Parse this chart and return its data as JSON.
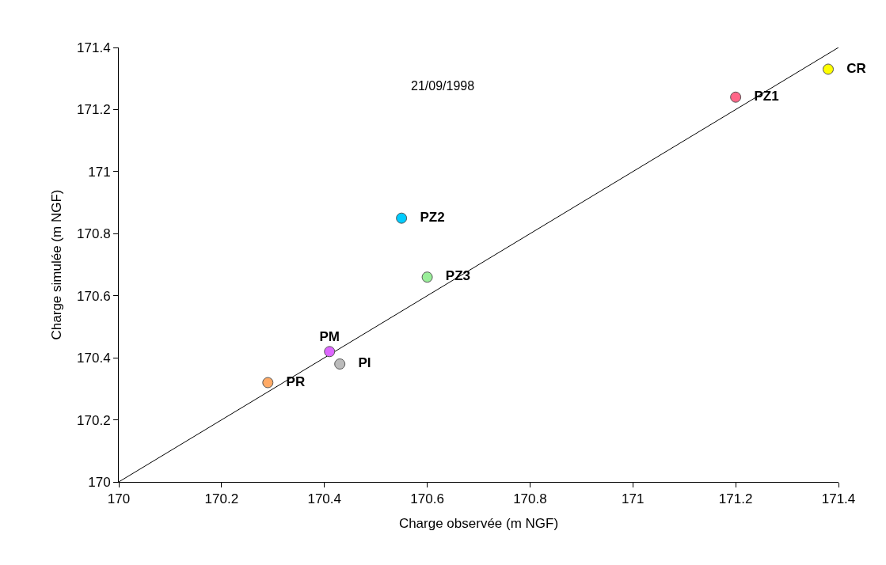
{
  "chart_data": {
    "type": "scatter",
    "xlabel": "Charge observée (m NGF)",
    "ylabel": "Charge simulée (m NGF)",
    "annotations": [
      "21/09/1998"
    ],
    "xlim": [
      170,
      171.4
    ],
    "xticks": [
      170,
      170.2,
      170.4,
      170.6,
      170.8,
      171,
      171.2,
      171.4
    ],
    "ylim": [
      170,
      171.4
    ],
    "yticks": [
      170,
      170.2,
      170.4,
      170.6,
      170.8,
      171,
      171.2,
      171.4
    ],
    "legend": false,
    "marker": "circle",
    "series": [
      {
        "type": "line",
        "marker": "none",
        "color": "#000000",
        "x": [
          170,
          171.4
        ],
        "values": [
          170,
          171.4
        ]
      },
      {
        "name": "CR",
        "color": "#ffff00",
        "x": [
          171.38
        ],
        "values": [
          171.33
        ]
      },
      {
        "name": "PZ1",
        "color": "#ff6688",
        "x": [
          171.2
        ],
        "values": [
          171.24
        ]
      },
      {
        "name": "PZ2",
        "color": "#00ccff",
        "x": [
          170.55
        ],
        "values": [
          170.85
        ]
      },
      {
        "name": "PZ3",
        "color": "#99ee99",
        "x": [
          170.6
        ],
        "values": [
          170.66
        ]
      },
      {
        "name": "PM",
        "color": "#dd66ff",
        "x": [
          170.41
        ],
        "values": [
          170.42
        ]
      },
      {
        "name": "PI",
        "color": "#bbbbbb",
        "x": [
          170.43
        ],
        "values": [
          170.38
        ]
      },
      {
        "name": "PR",
        "color": "#ffaa66",
        "x": [
          170.29
        ],
        "values": [
          170.32
        ]
      }
    ]
  }
}
